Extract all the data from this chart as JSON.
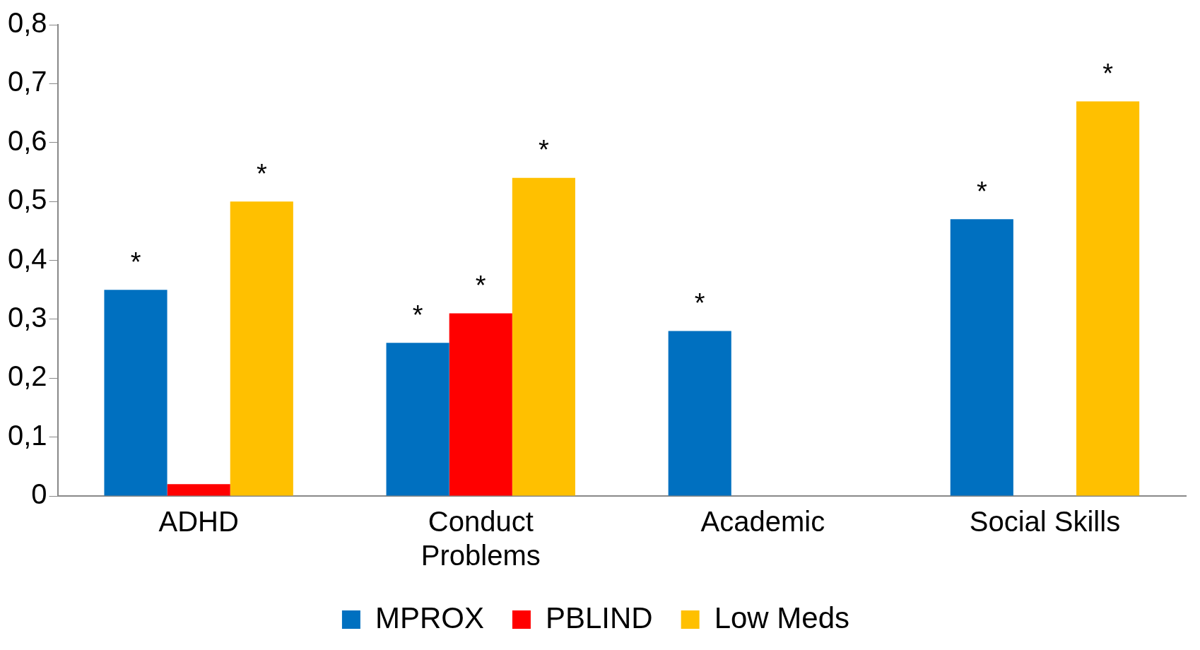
{
  "chart_data": {
    "type": "bar",
    "categories": [
      "ADHD",
      "Conduct Problems",
      "Academic",
      "Social Skills"
    ],
    "series": [
      {
        "name": "MPROX",
        "color": "#0070c0",
        "values": [
          0.35,
          0.26,
          0.28,
          0.47
        ],
        "value_labels": [
          "*",
          "*",
          "*",
          "*"
        ]
      },
      {
        "name": "PBLIND",
        "color": "#ff0000",
        "values": [
          0.02,
          0.31,
          null,
          null
        ],
        "value_labels": [
          null,
          "*",
          null,
          null
        ]
      },
      {
        "name": "Low Meds",
        "color": "#ffc000",
        "values": [
          0.5,
          0.54,
          null,
          0.67
        ],
        "value_labels": [
          "*",
          "*",
          null,
          "*"
        ]
      }
    ],
    "ylim": [
      0,
      0.8
    ],
    "yticks": [
      {
        "value": 0,
        "label": "0"
      },
      {
        "value": 0.1,
        "label": "0,1"
      },
      {
        "value": 0.2,
        "label": "0,2"
      },
      {
        "value": 0.3,
        "label": "0,3"
      },
      {
        "value": 0.4,
        "label": "0,4"
      },
      {
        "value": 0.5,
        "label": "0,5"
      },
      {
        "value": 0.6,
        "label": "0,6"
      },
      {
        "value": 0.7,
        "label": "0,7"
      },
      {
        "value": 0.8,
        "label": "0,8"
      }
    ],
    "grid": false,
    "legend": "bottom"
  }
}
